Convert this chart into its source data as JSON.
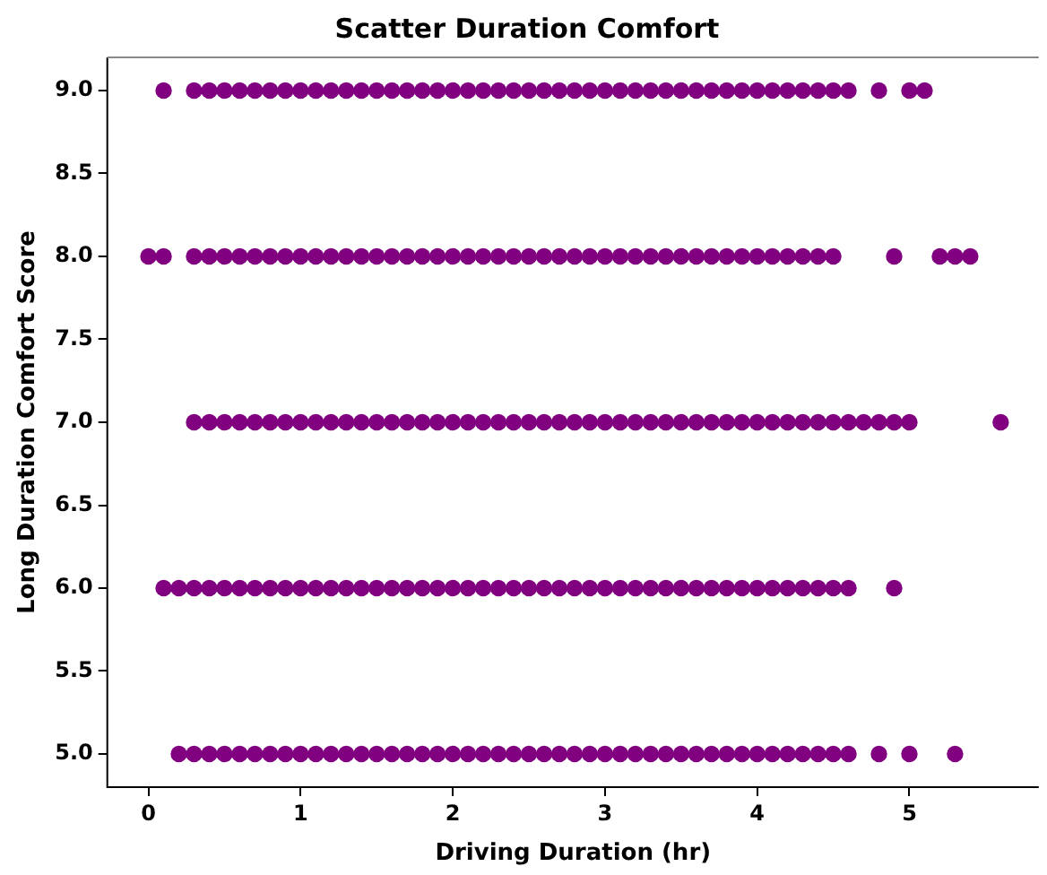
{
  "chart_data": {
    "type": "scatter",
    "title": "Scatter Duration Comfort",
    "xlabel": "Driving Duration (hr)",
    "ylabel": "Long Duration Comfort Score",
    "xlim": [
      -0.27,
      5.85
    ],
    "ylim": [
      4.8,
      9.2
    ],
    "xticks": [
      0,
      1,
      2,
      3,
      4,
      5
    ],
    "yticks": [
      {
        "value": 5,
        "label": "5.0"
      },
      {
        "value": 5.5,
        "label": "5.5"
      },
      {
        "value": 6,
        "label": "6.0"
      },
      {
        "value": 6.5,
        "label": "6.5"
      },
      {
        "value": 7,
        "label": "7.0"
      },
      {
        "value": 7.5,
        "label": "7.5"
      },
      {
        "value": 8,
        "label": "8.0"
      },
      {
        "value": 8.5,
        "label": "8.5"
      },
      {
        "value": 9,
        "label": "9.0"
      }
    ],
    "grid": false,
    "legend": false,
    "marker": "circle",
    "series": [
      {
        "color": "#800080",
        "x": [
          0.1,
          0.3,
          0.4,
          0.5,
          0.6,
          0.7,
          0.8,
          0.9,
          1.0,
          1.1,
          1.2,
          1.3,
          1.4,
          1.5,
          1.6,
          1.7,
          1.8,
          1.9,
          2.0,
          2.1,
          2.2,
          2.3,
          2.4,
          2.5,
          2.6,
          2.7,
          2.8,
          2.9,
          3.0,
          3.1,
          3.2,
          3.3,
          3.4,
          3.5,
          3.6,
          3.7,
          3.8,
          3.9,
          4.0,
          4.1,
          4.2,
          4.3,
          4.4,
          4.5,
          4.6,
          4.8,
          5.0,
          5.1
        ],
        "values": [
          9,
          9,
          9,
          9,
          9,
          9,
          9,
          9,
          9,
          9,
          9,
          9,
          9,
          9,
          9,
          9,
          9,
          9,
          9,
          9,
          9,
          9,
          9,
          9,
          9,
          9,
          9,
          9,
          9,
          9,
          9,
          9,
          9,
          9,
          9,
          9,
          9,
          9,
          9,
          9,
          9,
          9,
          9,
          9,
          9,
          9,
          9,
          9
        ]
      },
      {
        "color": "#800080",
        "x": [
          0.0,
          0.1,
          0.3,
          0.4,
          0.5,
          0.6,
          0.7,
          0.8,
          0.9,
          1.0,
          1.1,
          1.2,
          1.3,
          1.4,
          1.5,
          1.6,
          1.7,
          1.8,
          1.9,
          2.0,
          2.1,
          2.2,
          2.3,
          2.4,
          2.5,
          2.6,
          2.7,
          2.8,
          2.9,
          3.0,
          3.1,
          3.2,
          3.3,
          3.4,
          3.5,
          3.6,
          3.7,
          3.8,
          3.9,
          4.0,
          4.1,
          4.2,
          4.3,
          4.4,
          4.5,
          4.9,
          5.2,
          5.3,
          5.4
        ],
        "values": [
          8,
          8,
          8,
          8,
          8,
          8,
          8,
          8,
          8,
          8,
          8,
          8,
          8,
          8,
          8,
          8,
          8,
          8,
          8,
          8,
          8,
          8,
          8,
          8,
          8,
          8,
          8,
          8,
          8,
          8,
          8,
          8,
          8,
          8,
          8,
          8,
          8,
          8,
          8,
          8,
          8,
          8,
          8,
          8,
          8,
          8,
          8,
          8,
          8
        ]
      },
      {
        "color": "#800080",
        "x": [
          0.3,
          0.4,
          0.5,
          0.6,
          0.7,
          0.8,
          0.9,
          1.0,
          1.1,
          1.2,
          1.3,
          1.4,
          1.5,
          1.6,
          1.7,
          1.8,
          1.9,
          2.0,
          2.1,
          2.2,
          2.3,
          2.4,
          2.5,
          2.6,
          2.7,
          2.8,
          2.9,
          3.0,
          3.1,
          3.2,
          3.3,
          3.4,
          3.5,
          3.6,
          3.7,
          3.8,
          3.9,
          4.0,
          4.1,
          4.2,
          4.3,
          4.4,
          4.5,
          4.6,
          4.7,
          4.8,
          4.9,
          5.0,
          5.6
        ],
        "values": [
          7,
          7,
          7,
          7,
          7,
          7,
          7,
          7,
          7,
          7,
          7,
          7,
          7,
          7,
          7,
          7,
          7,
          7,
          7,
          7,
          7,
          7,
          7,
          7,
          7,
          7,
          7,
          7,
          7,
          7,
          7,
          7,
          7,
          7,
          7,
          7,
          7,
          7,
          7,
          7,
          7,
          7,
          7,
          7,
          7,
          7,
          7,
          7,
          7
        ]
      },
      {
        "color": "#800080",
        "x": [
          0.1,
          0.2,
          0.3,
          0.4,
          0.5,
          0.6,
          0.7,
          0.8,
          0.9,
          1.0,
          1.1,
          1.2,
          1.3,
          1.4,
          1.5,
          1.6,
          1.7,
          1.8,
          1.9,
          2.0,
          2.1,
          2.2,
          2.3,
          2.4,
          2.5,
          2.6,
          2.7,
          2.8,
          2.9,
          3.0,
          3.1,
          3.2,
          3.3,
          3.4,
          3.5,
          3.6,
          3.7,
          3.8,
          3.9,
          4.0,
          4.1,
          4.2,
          4.3,
          4.4,
          4.5,
          4.6,
          4.9
        ],
        "values": [
          6,
          6,
          6,
          6,
          6,
          6,
          6,
          6,
          6,
          6,
          6,
          6,
          6,
          6,
          6,
          6,
          6,
          6,
          6,
          6,
          6,
          6,
          6,
          6,
          6,
          6,
          6,
          6,
          6,
          6,
          6,
          6,
          6,
          6,
          6,
          6,
          6,
          6,
          6,
          6,
          6,
          6,
          6,
          6,
          6,
          6,
          6
        ]
      },
      {
        "color": "#800080",
        "x": [
          0.2,
          0.3,
          0.4,
          0.5,
          0.6,
          0.7,
          0.8,
          0.9,
          1.0,
          1.1,
          1.2,
          1.3,
          1.4,
          1.5,
          1.6,
          1.7,
          1.8,
          1.9,
          2.0,
          2.1,
          2.2,
          2.3,
          2.4,
          2.5,
          2.6,
          2.7,
          2.8,
          2.9,
          3.0,
          3.1,
          3.2,
          3.3,
          3.4,
          3.5,
          3.6,
          3.7,
          3.8,
          3.9,
          4.0,
          4.1,
          4.2,
          4.3,
          4.4,
          4.5,
          4.6,
          4.8,
          5.0,
          5.3
        ],
        "values": [
          5,
          5,
          5,
          5,
          5,
          5,
          5,
          5,
          5,
          5,
          5,
          5,
          5,
          5,
          5,
          5,
          5,
          5,
          5,
          5,
          5,
          5,
          5,
          5,
          5,
          5,
          5,
          5,
          5,
          5,
          5,
          5,
          5,
          5,
          5,
          5,
          5,
          5,
          5,
          5,
          5,
          5,
          5,
          5,
          5,
          5,
          5,
          5
        ]
      }
    ]
  }
}
